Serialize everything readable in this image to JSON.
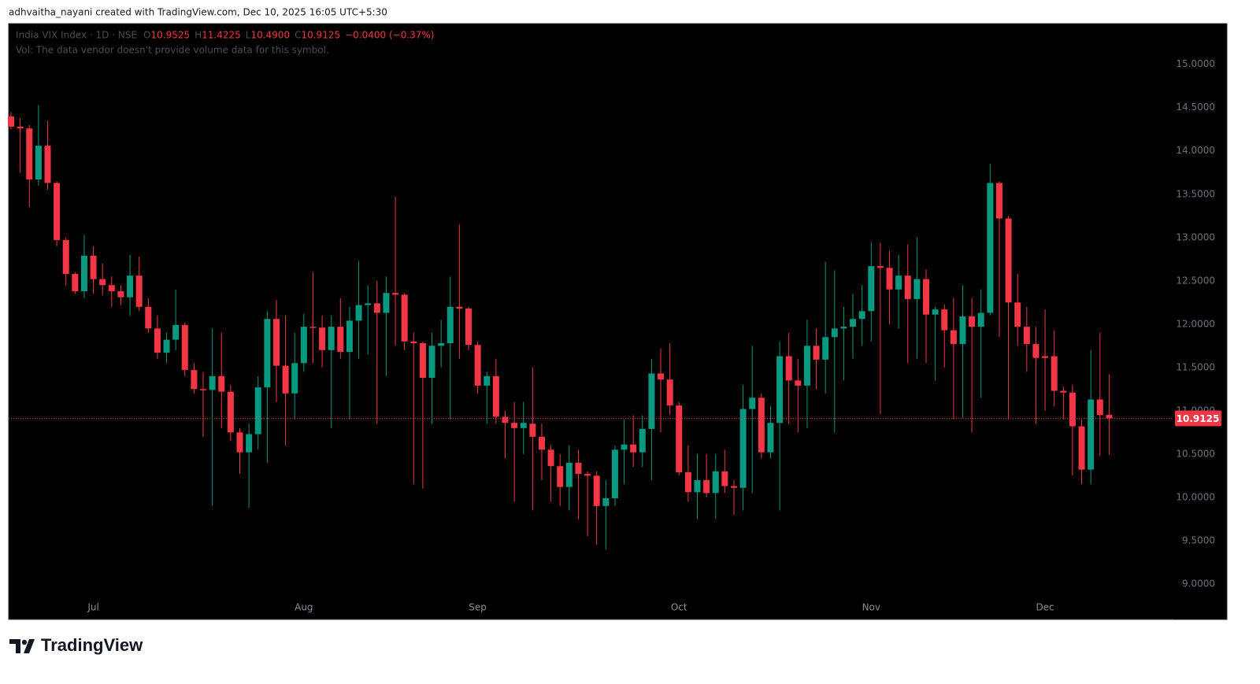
{
  "header": {
    "credit": "adhvaitha_nayani created with TradingView.com, Dec 10, 2025 16:05 UTC+5:30"
  },
  "footer": {
    "brand": "TradingView"
  },
  "chart_data": {
    "type": "candlestick",
    "legend": {
      "symbol": "India VIX Index · 1D · NSE",
      "o_label": "O",
      "o": "10.9525",
      "h_label": "H",
      "h": "11.4225",
      "l_label": "L",
      "l": "10.4900",
      "c_label": "C",
      "c": "10.9125",
      "change": "−0.0400 (−0.37%)",
      "volume_note": "Vol: The data vendor doesn't provide volume data for this symbol."
    },
    "up_color": "#089981",
    "down_color": "#f23645",
    "grid": false,
    "categories": [
      null,
      null,
      null,
      null,
      null,
      null,
      null,
      null,
      null,
      "Jul",
      null,
      null,
      null,
      null,
      null,
      null,
      null,
      null,
      null,
      null,
      null,
      null,
      null,
      null,
      null,
      null,
      null,
      null,
      null,
      null,
      null,
      null,
      "Aug",
      null,
      null,
      null,
      null,
      null,
      null,
      null,
      null,
      null,
      null,
      null,
      null,
      null,
      null,
      null,
      null,
      null,
      null,
      "Sep",
      null,
      null,
      null,
      null,
      null,
      null,
      null,
      null,
      null,
      null,
      null,
      null,
      null,
      null,
      null,
      null,
      null,
      null,
      null,
      null,
      null,
      "Oct",
      null,
      null,
      null,
      null,
      null,
      null,
      null,
      null,
      null,
      null,
      null,
      null,
      null,
      null,
      null,
      null,
      null,
      null,
      null,
      null,
      "Nov",
      null,
      null,
      null,
      null,
      null,
      null,
      null,
      null,
      null,
      null,
      null,
      null,
      null,
      null,
      null,
      null,
      null,
      null,
      "Dec",
      null,
      null,
      null,
      null,
      null,
      null,
      null
    ],
    "open": [
      14.4,
      14.28,
      14.26,
      13.67,
      14.06,
      13.63,
      12.97,
      12.58,
      12.38,
      12.79,
      12.52,
      12.45,
      12.38,
      12.31,
      12.56,
      12.2,
      11.95,
      11.67,
      11.82,
      11.99,
      11.47,
      11.25,
      11.24,
      11.4,
      11.22,
      10.75,
      10.52,
      10.73,
      11.27,
      12.06,
      11.52,
      11.2,
      11.55,
      11.97,
      11.96,
      11.7,
      11.97,
      11.68,
      12.04,
      12.22,
      12.24,
      12.13,
      12.36,
      12.34,
      11.8,
      11.78,
      11.38,
      11.75,
      11.78,
      12.2,
      12.18,
      11.76,
      11.29,
      11.4,
      10.93,
      10.86,
      10.8,
      10.85,
      10.7,
      10.55,
      10.36,
      10.12,
      10.4,
      10.27,
      10.25,
      9.9,
      9.99,
      10.55,
      10.61,
      10.52,
      10.79,
      11.43,
      11.36,
      11.06,
      10.29,
      10.06,
      10.2,
      10.05,
      10.3,
      10.13,
      10.11,
      11.02,
      11.15,
      10.52,
      10.86,
      11.63,
      11.35,
      11.29,
      11.75,
      11.59,
      11.85,
      11.95,
      11.97,
      12.06,
      12.15,
      12.67,
      12.65,
      12.4,
      12.56,
      12.29,
      12.52,
      12.11,
      12.17,
      11.93,
      11.77,
      12.09,
      11.97,
      12.13,
      13.63,
      13.22,
      12.25,
      11.97,
      11.77,
      11.63,
      11.63,
      11.23,
      11.21,
      10.82,
      10.32,
      11.13,
      10.9525
    ],
    "high": [
      14.45,
      14.38,
      14.3,
      14.53,
      14.35,
      13.65,
      13.0,
      12.6,
      13.03,
      12.9,
      12.7,
      12.55,
      12.45,
      12.8,
      12.78,
      12.3,
      12.1,
      11.9,
      12.4,
      12.02,
      11.55,
      11.45,
      11.95,
      11.9,
      11.3,
      10.8,
      10.85,
      11.4,
      12.15,
      12.28,
      12.1,
      11.9,
      12.12,
      12.6,
      12.1,
      12.1,
      12.3,
      12.2,
      12.73,
      12.45,
      12.5,
      12.55,
      13.47,
      12.36,
      11.9,
      11.8,
      11.9,
      12.05,
      12.55,
      13.15,
      12.2,
      11.8,
      11.45,
      11.6,
      11.0,
      11.1,
      11.1,
      11.5,
      10.85,
      10.6,
      10.5,
      10.6,
      10.55,
      10.3,
      10.3,
      10.2,
      10.6,
      10.9,
      10.95,
      10.95,
      11.6,
      11.72,
      11.78,
      11.1,
      10.6,
      10.5,
      10.5,
      10.5,
      10.55,
      10.2,
      11.3,
      11.75,
      11.2,
      11.05,
      11.8,
      11.9,
      11.6,
      12.05,
      11.95,
      12.72,
      12.62,
      12.2,
      12.35,
      12.45,
      12.95,
      12.94,
      12.85,
      12.8,
      12.92,
      13.0,
      12.63,
      12.2,
      12.23,
      12.3,
      12.45,
      12.3,
      12.4,
      13.85,
      13.65,
      13.25,
      12.58,
      12.2,
      11.97,
      12.17,
      11.93,
      11.28,
      11.3,
      10.9,
      11.7,
      11.9,
      11.4225
    ],
    "low": [
      14.25,
      13.75,
      13.35,
      13.6,
      13.55,
      12.9,
      12.45,
      12.35,
      12.3,
      12.35,
      12.33,
      12.2,
      12.22,
      12.1,
      12.15,
      11.9,
      11.6,
      11.55,
      11.7,
      11.4,
      11.2,
      10.7,
      9.9,
      10.8,
      10.65,
      10.27,
      9.88,
      10.55,
      10.4,
      11.1,
      10.6,
      10.9,
      11.45,
      11.55,
      11.5,
      10.8,
      11.6,
      10.9,
      11.6,
      11.65,
      10.85,
      11.4,
      11.75,
      11.7,
      10.15,
      10.1,
      10.85,
      11.5,
      10.9,
      11.6,
      11.7,
      11.2,
      10.85,
      10.85,
      10.45,
      9.95,
      10.5,
      9.85,
      10.2,
      9.95,
      9.9,
      9.85,
      9.75,
      9.55,
      9.45,
      9.4,
      9.9,
      10.15,
      10.35,
      10.35,
      10.2,
      10.75,
      10.95,
      10.25,
      9.95,
      9.75,
      10.0,
      9.75,
      10.05,
      9.8,
      9.85,
      10.05,
      10.45,
      10.45,
      9.85,
      10.85,
      10.75,
      10.8,
      11.25,
      11.2,
      10.75,
      11.35,
      11.6,
      11.75,
      11.8,
      10.96,
      12.0,
      11.95,
      11.55,
      11.6,
      11.55,
      11.35,
      11.5,
      10.9,
      10.92,
      10.75,
      11.15,
      12.1,
      11.85,
      10.9,
      11.75,
      11.45,
      10.85,
      11.0,
      11.05,
      10.9,
      10.25,
      10.15,
      10.15,
      10.48,
      10.49
    ],
    "close": [
      14.28,
      14.26,
      13.67,
      14.06,
      13.63,
      12.97,
      12.58,
      12.38,
      12.79,
      12.52,
      12.45,
      12.38,
      12.31,
      12.56,
      12.2,
      11.95,
      11.67,
      11.82,
      11.99,
      11.47,
      11.25,
      11.24,
      11.4,
      11.22,
      10.75,
      10.52,
      10.73,
      11.27,
      12.06,
      11.52,
      11.2,
      11.55,
      11.97,
      11.96,
      11.7,
      11.97,
      11.68,
      12.04,
      12.22,
      12.24,
      12.13,
      12.36,
      12.34,
      11.8,
      11.78,
      11.38,
      11.75,
      11.78,
      12.2,
      12.18,
      11.76,
      11.29,
      11.4,
      10.93,
      10.86,
      10.8,
      10.86,
      10.7,
      10.55,
      10.36,
      10.12,
      10.4,
      10.27,
      10.25,
      9.9,
      9.99,
      10.55,
      10.61,
      10.52,
      10.79,
      11.43,
      11.36,
      11.06,
      10.29,
      10.06,
      10.2,
      10.05,
      10.3,
      10.13,
      10.11,
      11.02,
      11.15,
      10.52,
      10.86,
      11.63,
      11.35,
      11.29,
      11.75,
      11.59,
      11.85,
      11.95,
      11.97,
      12.06,
      12.15,
      12.67,
      12.65,
      12.4,
      12.56,
      12.29,
      12.52,
      12.11,
      12.17,
      11.93,
      11.77,
      12.09,
      11.97,
      12.13,
      13.63,
      13.22,
      12.25,
      11.97,
      11.77,
      11.61,
      11.61,
      11.23,
      11.21,
      10.82,
      10.32,
      11.13,
      10.95,
      10.9125
    ],
    "ylim": [
      8.59,
      15.47
    ],
    "yticks": [
      {
        "value": 9,
        "label": "9.0000"
      },
      {
        "value": 9.5,
        "label": "9.5000"
      },
      {
        "value": 10,
        "label": "10.0000"
      },
      {
        "value": 10.5,
        "label": "10.5000"
      },
      {
        "value": 11,
        "label": "11.0000"
      },
      {
        "value": 11.5,
        "label": "11.5000"
      },
      {
        "value": 12,
        "label": "12.0000"
      },
      {
        "value": 12.5,
        "label": "12.5000"
      },
      {
        "value": 13,
        "label": "13.0000"
      },
      {
        "value": 13.5,
        "label": "13.5000"
      },
      {
        "value": 14,
        "label": "14.0000"
      },
      {
        "value": 14.5,
        "label": "14.5000"
      },
      {
        "value": 15,
        "label": "15.0000"
      }
    ],
    "last_price": {
      "value": 10.9125,
      "label": "10.9125"
    }
  }
}
